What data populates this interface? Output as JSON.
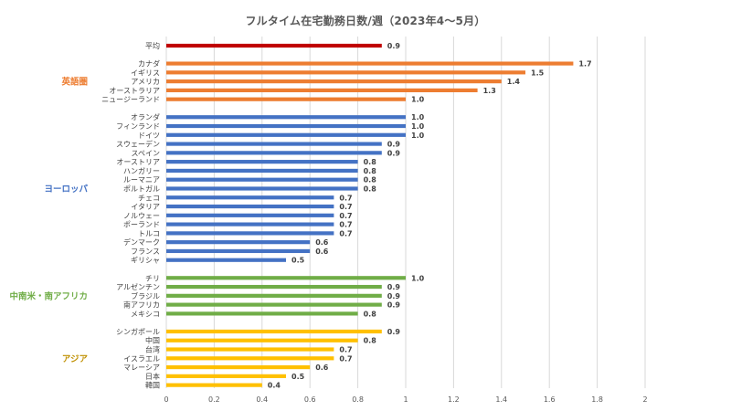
{
  "chart_data": {
    "type": "bar",
    "orientation": "horizontal",
    "title": "フルタイム在宅勤務日数/週（2023年4～5月）",
    "xlim": [
      0,
      2
    ],
    "xticks": [
      "0",
      "0.2",
      "0.4",
      "0.6",
      "0.8",
      "1",
      "1.2",
      "1.4",
      "1.6",
      "1.8",
      "2"
    ],
    "grid": true,
    "groups": [
      {
        "name": "",
        "color": "#C00000",
        "categories": [
          "平均"
        ],
        "values": [
          0.9
        ]
      },
      {
        "name": "英語圏",
        "color": "#ED7D31",
        "categories": [
          "カナダ",
          "イギリス",
          "アメリカ",
          "オーストラリア",
          "ニュージーランド"
        ],
        "values": [
          1.7,
          1.5,
          1.4,
          1.3,
          1.0
        ]
      },
      {
        "name": "ヨーロッパ",
        "color": "#4472C4",
        "categories": [
          "オランダ",
          "フィンランド",
          "ドイツ",
          "スウェーデン",
          "スペイン",
          "オーストリア",
          "ハンガリー",
          "ルーマニア",
          "ポルトガル",
          "チェコ",
          "イタリア",
          "ノルウェー",
          "ポーランド",
          "トルコ",
          "デンマーク",
          "フランス",
          "ギリシャ"
        ],
        "values": [
          1.0,
          1.0,
          1.0,
          0.9,
          0.9,
          0.8,
          0.8,
          0.8,
          0.8,
          0.7,
          0.7,
          0.7,
          0.7,
          0.7,
          0.6,
          0.6,
          0.5
        ]
      },
      {
        "name": "中南米・南アフリカ",
        "color": "#70AD47",
        "categories": [
          "チリ",
          "アルゼンチン",
          "ブラジル",
          "南アフリカ",
          "メキシコ"
        ],
        "values": [
          1.0,
          0.9,
          0.9,
          0.9,
          0.8
        ]
      },
      {
        "name": "アジア",
        "color": "#FFC000",
        "label_color": "#C09000",
        "categories": [
          "シンガポール",
          "中国",
          "台湾",
          "イスラエル",
          "マレーシア",
          "日本",
          "韓国"
        ],
        "values": [
          0.9,
          0.8,
          0.7,
          0.7,
          0.6,
          0.5,
          0.4
        ]
      }
    ]
  }
}
